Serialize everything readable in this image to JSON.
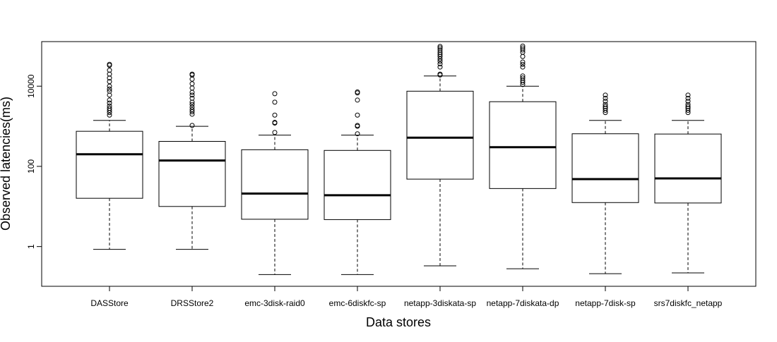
{
  "chart_data": {
    "type": "box",
    "xlabel": "Data stores",
    "ylabel": "Observed latencies(ms)",
    "yscale": "log",
    "ylim": [
      0.12,
      110000
    ],
    "ytick_values": [
      1,
      100,
      10000
    ],
    "ytick_labels": [
      "1",
      "100",
      "10000"
    ],
    "categories": [
      "DASStore",
      "DRSStore2",
      "emc-3disk-raid0",
      "emc-6diskfc-sp",
      "netapp-3diskata-sp",
      "netapp-7diskata-dp",
      "netapp-7disk-sp",
      "srs7diskfc_netapp"
    ],
    "boxes": [
      {
        "whisker_low": 0.85,
        "q1": 16,
        "median": 200,
        "q3": 750,
        "whisker_high": 1400,
        "outliers": [
          1900,
          2200,
          2500,
          2800,
          3200,
          3800,
          4500,
          6000,
          7500,
          8500,
          10000,
          13000,
          16000,
          20000,
          25000,
          33000,
          35000
        ]
      },
      {
        "whisker_low": 0.85,
        "q1": 10,
        "median": 140,
        "q3": 420,
        "whisker_high": 1000,
        "outliers": [
          1050,
          2000,
          2300,
          2600,
          3000,
          3500,
          4000,
          5000,
          6000,
          7000,
          9000,
          11500,
          15000,
          19000,
          20000
        ]
      },
      {
        "whisker_low": 0.2,
        "q1": 4.8,
        "median": 21,
        "q3": 260,
        "whisker_high": 600,
        "outliers": [
          700,
          1200,
          1250,
          1900,
          4000,
          6500
        ]
      },
      {
        "whisker_low": 0.2,
        "q1": 4.7,
        "median": 19,
        "q3": 250,
        "whisker_high": 600,
        "outliers": [
          650,
          1000,
          1050,
          1900,
          4500,
          6800,
          7200
        ]
      },
      {
        "whisker_low": 0.33,
        "q1": 48,
        "median": 520,
        "q3": 7500,
        "whisker_high": 18000,
        "outliers": [
          19000,
          20000,
          30000,
          36000,
          42000,
          48000,
          55000,
          62000,
          70000,
          80000,
          90000,
          98000
        ]
      },
      {
        "whisker_low": 0.28,
        "q1": 28,
        "median": 300,
        "q3": 4100,
        "whisker_high": 10000,
        "outliers": [
          11000,
          12500,
          14000,
          16000,
          18000,
          30000,
          35000,
          40000,
          55000,
          70000,
          80000,
          90000,
          100000
        ]
      },
      {
        "whisker_low": 0.21,
        "q1": 12.5,
        "median": 48,
        "q3": 650,
        "whisker_high": 1400,
        "outliers": [
          2200,
          2500,
          2800,
          3100,
          3500,
          4200,
          5000,
          6000
        ]
      },
      {
        "whisker_low": 0.22,
        "q1": 12.2,
        "median": 50,
        "q3": 640,
        "whisker_high": 1400,
        "outliers": [
          2200,
          2500,
          2800,
          3100,
          3500,
          4200,
          5000,
          6000
        ]
      }
    ]
  }
}
